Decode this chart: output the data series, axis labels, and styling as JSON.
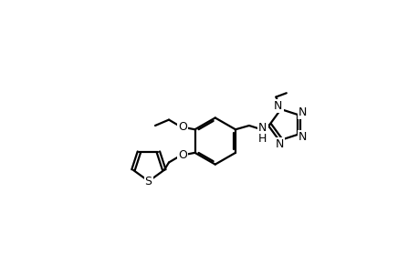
{
  "bg_color": "#ffffff",
  "line_color": "#000000",
  "line_width": 1.6,
  "fig_width": 4.6,
  "fig_height": 3.0,
  "dpi": 100,
  "xlim": [
    0,
    10
  ],
  "ylim": [
    0,
    6.5
  ]
}
